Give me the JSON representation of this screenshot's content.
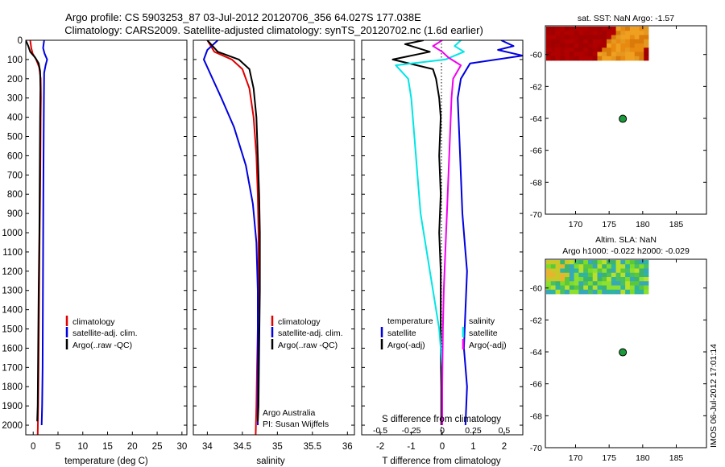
{
  "title_line1": "Argo profile: CS 5903253_87 03-Jul-2012 20120706_356 64.027S 177.038E",
  "title_line2": "Climatology: CARS2009. Satellite-adjusted climatology: synTS_20120702.nc (1.6d earlier)",
  "colors": {
    "climatology": "#e00000",
    "satellite": "#0000e0",
    "argo": "#000000",
    "salinity_satellite": "#00e5e5",
    "salinity_argo": "#f000f0",
    "marker": "#1a9a3a"
  },
  "watermark": "IMOS 06-Jul-2012 17:01:14",
  "chart_data": [
    {
      "id": "temperature",
      "type": "line",
      "xlabel": "temperature (deg C)",
      "xlim": [
        -1.5,
        31
      ],
      "xticks": [
        "0",
        "5",
        "10",
        "15",
        "20",
        "25",
        "30"
      ],
      "ylim": [
        2050,
        0
      ],
      "yticks": [
        "0",
        "100",
        "200",
        "300",
        "400",
        "500",
        "600",
        "700",
        "800",
        "900",
        "1000",
        "1100",
        "1200",
        "1300",
        "1400",
        "1500",
        "1600",
        "1700",
        "1800",
        "1900",
        "2000"
      ],
      "legend": [
        "climatology",
        "satellite-adj. clim.",
        "Argo(..raw -QC)"
      ],
      "series": [
        {
          "name": "climatology",
          "color_key": "climatology",
          "x": [
            -0.6,
            -0.4,
            -0.1,
            0.6,
            1.2,
            1.5,
            1.55,
            1.5,
            1.45,
            1.4,
            1.3,
            1.2,
            1.1,
            1.0,
            0.9
          ],
          "y": [
            0,
            40,
            70,
            100,
            140,
            200,
            300,
            400,
            600,
            800,
            1000,
            1300,
            1600,
            1900,
            2050
          ]
        },
        {
          "name": "satellite-adj. clim.",
          "color_key": "satellite",
          "x": [
            2.2,
            2.0,
            2.3,
            2.8,
            2.5,
            2.2,
            2.15,
            2.1,
            2.05,
            2.0,
            1.95,
            1.9,
            1.8,
            1.7
          ],
          "y": [
            0,
            40,
            70,
            100,
            130,
            170,
            300,
            500,
            800,
            1100,
            1400,
            1700,
            1900,
            2000
          ]
        },
        {
          "name": "Argo(..raw -QC)",
          "color_key": "argo",
          "x": [
            -1.5,
            -1.0,
            -0.6,
            0.4,
            1.1,
            1.4,
            1.45,
            1.4,
            1.35,
            1.3,
            1.25,
            1.1,
            1.0,
            0.9,
            0.8
          ],
          "y": [
            0,
            30,
            60,
            90,
            120,
            160,
            250,
            400,
            600,
            800,
            1000,
            1300,
            1600,
            1900,
            1980
          ]
        }
      ]
    },
    {
      "id": "salinity",
      "type": "line",
      "xlabel": "salinity",
      "xlim": [
        33.8,
        36.1
      ],
      "xticks": [
        "34",
        "34.5",
        "35",
        "35.5",
        "36"
      ],
      "ylim": [
        2050,
        0
      ],
      "legend": [
        "climatology",
        "satellite-adj. clim.",
        "Argo(..raw -QC)"
      ],
      "annotation": [
        "Argo Australia",
        "PI: Susan Wijffels"
      ],
      "series": [
        {
          "name": "climatology",
          "color_key": "climatology",
          "x": [
            34.0,
            34.1,
            34.35,
            34.5,
            34.6,
            34.66,
            34.7,
            34.72,
            34.73,
            34.73,
            34.72,
            34.71,
            34.7,
            34.69
          ],
          "y": [
            0,
            60,
            100,
            150,
            250,
            400,
            600,
            800,
            1000,
            1300,
            1500,
            1700,
            1900,
            2050
          ]
        },
        {
          "name": "satellite-adj. clim.",
          "color_key": "satellite",
          "x": [
            34.15,
            34.0,
            33.95,
            34.05,
            34.2,
            34.38,
            34.55,
            34.65,
            34.7,
            34.72,
            34.72,
            34.72,
            34.72
          ],
          "y": [
            0,
            50,
            100,
            180,
            300,
            450,
            650,
            850,
            1050,
            1300,
            1600,
            1900,
            2000
          ]
        },
        {
          "name": "Argo(..raw -QC)",
          "color_key": "argo",
          "x": [
            34.0,
            34.15,
            34.45,
            34.6,
            34.66,
            34.7,
            34.72,
            34.74,
            34.75,
            34.75,
            34.74,
            34.73,
            34.72
          ],
          "y": [
            0,
            60,
            100,
            150,
            250,
            400,
            600,
            800,
            1000,
            1300,
            1600,
            1900,
            1980
          ]
        }
      ]
    },
    {
      "id": "difference",
      "type": "line",
      "xlabel_bottom": "T difference from climatology",
      "xlabel_top": "S difference from climatology",
      "xlim": [
        -2.6,
        2.6
      ],
      "xticks_bottom": [
        "-2",
        "-1",
        "0",
        "1",
        "2"
      ],
      "xticks_top": [
        "-0.5",
        "-0.25",
        "0",
        "0.25",
        "0.5"
      ],
      "ylim": [
        2050,
        0
      ],
      "legend": {
        "temperature_header": "temperature",
        "salinity_header": "salinity",
        "temperature": [
          "satellite",
          "Argo(-adj)"
        ],
        "salinity": [
          "satellite",
          "Argo(-adj)"
        ]
      },
      "series": [
        {
          "name": "satellite",
          "group": "temperature",
          "color_key": "satellite",
          "x": [
            1.9,
            2.3,
            1.8,
            2.6,
            0.9,
            0.6,
            0.5,
            0.55,
            0.6,
            0.65,
            0.7,
            0.75,
            0.8,
            0.75,
            0.7,
            0.8,
            0.75
          ],
          "y": [
            0,
            30,
            50,
            80,
            120,
            200,
            300,
            500,
            700,
            900,
            1000,
            1100,
            1200,
            1400,
            1600,
            1800,
            2000
          ]
        },
        {
          "name": "Argo(-adj)",
          "group": "temperature",
          "color_key": "argo",
          "x": [
            -0.6,
            -1.2,
            -0.8,
            -0.4,
            -1.6,
            -0.3,
            -0.2,
            -0.1,
            -0.05,
            -0.1,
            -0.05,
            -0.1,
            -0.05,
            -0.05,
            -0.05,
            -0.03,
            -0.03,
            -0.03
          ],
          "y": [
            0,
            20,
            40,
            60,
            100,
            150,
            200,
            300,
            400,
            600,
            800,
            1000,
            1200,
            1400,
            1600,
            1800,
            1950,
            2000
          ]
        },
        {
          "name": "satellite",
          "group": "salinity",
          "color_key": "salinity_satellite",
          "x": [
            0.6,
            0.4,
            0.7,
            0.1,
            -1.5,
            -1.1,
            -1.0,
            -0.9,
            -0.8,
            -0.7,
            -0.5,
            -0.3,
            -0.1,
            0.0,
            0.0,
            0.0
          ],
          "y": [
            0,
            30,
            60,
            100,
            130,
            200,
            300,
            500,
            700,
            900,
            1100,
            1300,
            1500,
            1700,
            1900,
            2000
          ]
        },
        {
          "name": "Argo(-adj)",
          "group": "salinity",
          "color_key": "salinity_argo",
          "x": [
            0.0,
            -0.3,
            0.0,
            0.2,
            0.6,
            0.35,
            0.3,
            0.25,
            0.2,
            0.15,
            0.1,
            0.05,
            0.02,
            0.0,
            0.0
          ],
          "y": [
            0,
            30,
            60,
            90,
            130,
            200,
            300,
            500,
            700,
            900,
            1100,
            1300,
            1500,
            1800,
            2000
          ]
        }
      ]
    },
    {
      "id": "sst-map",
      "type": "heatmap",
      "title": "sat. SST: NaN Argo: -1.57",
      "xlim": [
        165.5,
        189.5
      ],
      "ylim": [
        -70,
        -58.2
      ],
      "xticks": [
        "170",
        "175",
        "180",
        "185"
      ],
      "yticks": [
        "-60",
        "-62",
        "-64",
        "-66",
        "-68",
        "-70"
      ],
      "marker": {
        "lon": 177.038,
        "lat": -64.027
      }
    },
    {
      "id": "sla-map",
      "type": "heatmap",
      "title_line1": "Altim. SLA: NaN",
      "title_line2": "Argo h1000: -0.022 h2000: -0.029",
      "xlim": [
        165.5,
        189.5
      ],
      "ylim": [
        -70,
        -58.2
      ],
      "xticks": [
        "170",
        "175",
        "180",
        "185"
      ],
      "yticks": [
        "-60",
        "-62",
        "-64",
        "-66",
        "-68",
        "-70"
      ],
      "marker": {
        "lon": 177.038,
        "lat": -64.027
      }
    }
  ]
}
